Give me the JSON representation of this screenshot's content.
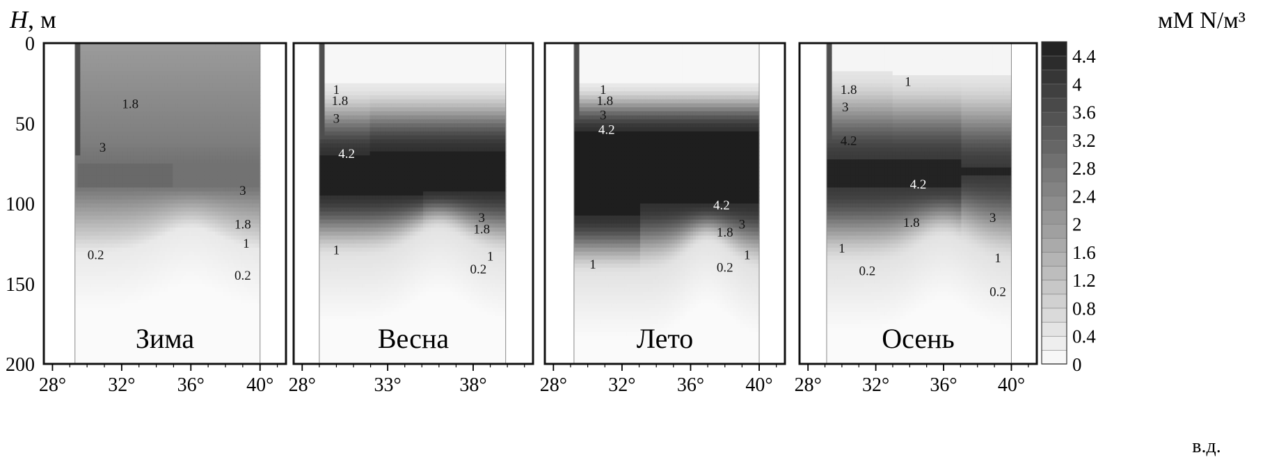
{
  "chart_data": {
    "type": "heatmap",
    "title": "",
    "y_axis": {
      "var_label": "H",
      "unit_label": ", м",
      "ylim": [
        0,
        200
      ],
      "inverted": true,
      "ticks": [
        "0",
        "50",
        "100",
        "150",
        "200"
      ]
    },
    "x_axis": {
      "unit_label": "в.д."
    },
    "colorbar": {
      "label": "мМ N/м³",
      "ticks": [
        "0",
        "0.4",
        "0.8",
        "1.2",
        "1.6",
        "2",
        "2.4",
        "2.8",
        "3.2",
        "3.6",
        "4",
        "4.4"
      ],
      "levels": [
        0,
        0.2,
        0.4,
        0.6,
        0.8,
        1.0,
        1.2,
        1.4,
        1.6,
        1.8,
        2.0,
        2.2,
        2.4,
        2.6,
        2.8,
        3.0,
        3.2,
        3.4,
        3.6,
        3.8,
        4.0,
        4.2,
        4.4
      ],
      "max": 4.6
    },
    "panels": [
      {
        "name": "Зима",
        "xticks": [
          {
            "v": 28,
            "label": "28°"
          },
          {
            "v": 32,
            "label": "32°"
          },
          {
            "v": 36,
            "label": "36°"
          },
          {
            "v": 40,
            "label": "40°"
          }
        ],
        "xlim": [
          27.5,
          41.5
        ],
        "coast_lon": 29.3,
        "east_lon": 40,
        "shape": "winter",
        "contour_labels": [
          {
            "text": "1.8",
            "lon": 32.5,
            "depth": 38,
            "color": "dark"
          },
          {
            "text": "3",
            "lon": 30.9,
            "depth": 65,
            "color": "dark"
          },
          {
            "text": "3",
            "lon": 39.0,
            "depth": 92,
            "color": "dark"
          },
          {
            "text": "1.8",
            "lon": 39.0,
            "depth": 113,
            "color": "dark"
          },
          {
            "text": "1",
            "lon": 39.2,
            "depth": 125,
            "color": "dark"
          },
          {
            "text": "0.2",
            "lon": 30.5,
            "depth": 132,
            "color": "dark"
          },
          {
            "text": "0.2",
            "lon": 39.0,
            "depth": 145,
            "color": "dark"
          }
        ]
      },
      {
        "name": "Весна",
        "xticks": [
          {
            "v": 28,
            "label": "28°"
          },
          {
            "v": 33,
            "label": "33°"
          },
          {
            "v": 38,
            "label": "38°"
          }
        ],
        "xlim": [
          27.5,
          41.5
        ],
        "coast_lon": 29.0,
        "east_lon": 39.9,
        "shape": "spring",
        "contour_labels": [
          {
            "text": "1",
            "lon": 30.0,
            "depth": 29,
            "color": "dark"
          },
          {
            "text": "1.8",
            "lon": 30.2,
            "depth": 36,
            "color": "dark"
          },
          {
            "text": "3",
            "lon": 30.0,
            "depth": 47,
            "color": "dark"
          },
          {
            "text": "4.2",
            "lon": 30.6,
            "depth": 69,
            "color": "light"
          },
          {
            "text": "3",
            "lon": 38.5,
            "depth": 109,
            "color": "dark"
          },
          {
            "text": "1.8",
            "lon": 38.5,
            "depth": 116,
            "color": "dark"
          },
          {
            "text": "1",
            "lon": 30.0,
            "depth": 129,
            "color": "dark"
          },
          {
            "text": "1",
            "lon": 39.0,
            "depth": 133,
            "color": "dark"
          },
          {
            "text": "0.2",
            "lon": 38.3,
            "depth": 141,
            "color": "dark"
          }
        ]
      },
      {
        "name": "Лето",
        "xticks": [
          {
            "v": 28,
            "label": "28°"
          },
          {
            "v": 32,
            "label": "32°"
          },
          {
            "v": 36,
            "label": "36°"
          },
          {
            "v": 40,
            "label": "40°"
          }
        ],
        "xlim": [
          27.5,
          41.5
        ],
        "coast_lon": 29.2,
        "east_lon": 40,
        "shape": "summer",
        "contour_labels": [
          {
            "text": "1",
            "lon": 30.9,
            "depth": 29,
            "color": "dark"
          },
          {
            "text": "1.8",
            "lon": 31.0,
            "depth": 36,
            "color": "dark"
          },
          {
            "text": "3",
            "lon": 30.9,
            "depth": 45,
            "color": "dark"
          },
          {
            "text": "4.2",
            "lon": 31.1,
            "depth": 54,
            "color": "light"
          },
          {
            "text": "4.2",
            "lon": 37.8,
            "depth": 101,
            "color": "light"
          },
          {
            "text": "3",
            "lon": 39.0,
            "depth": 113,
            "color": "dark"
          },
          {
            "text": "1.8",
            "lon": 38.0,
            "depth": 118,
            "color": "dark"
          },
          {
            "text": "1",
            "lon": 39.3,
            "depth": 132,
            "color": "dark"
          },
          {
            "text": "1",
            "lon": 30.3,
            "depth": 138,
            "color": "dark"
          },
          {
            "text": "0.2",
            "lon": 38.0,
            "depth": 140,
            "color": "dark"
          }
        ]
      },
      {
        "name": "Осень",
        "xticks": [
          {
            "v": 28,
            "label": "28°"
          },
          {
            "v": 32,
            "label": "32°"
          },
          {
            "v": 36,
            "label": "36°"
          },
          {
            "v": 40,
            "label": "40°"
          }
        ],
        "xlim": [
          27.5,
          41.5
        ],
        "coast_lon": 29.1,
        "east_lon": 40,
        "shape": "autumn",
        "contour_labels": [
          {
            "text": "1",
            "lon": 33.9,
            "depth": 24,
            "color": "dark"
          },
          {
            "text": "1.8",
            "lon": 30.4,
            "depth": 29,
            "color": "dark"
          },
          {
            "text": "3",
            "lon": 30.2,
            "depth": 40,
            "color": "dark"
          },
          {
            "text": "4.2",
            "lon": 30.4,
            "depth": 61,
            "color": "dark"
          },
          {
            "text": "4.2",
            "lon": 34.5,
            "depth": 88,
            "color": "light"
          },
          {
            "text": "1.8",
            "lon": 34.1,
            "depth": 112,
            "color": "dark"
          },
          {
            "text": "3",
            "lon": 38.9,
            "depth": 109,
            "color": "dark"
          },
          {
            "text": "1",
            "lon": 30.0,
            "depth": 128,
            "color": "dark"
          },
          {
            "text": "1",
            "lon": 39.2,
            "depth": 134,
            "color": "dark"
          },
          {
            "text": "0.2",
            "lon": 31.5,
            "depth": 142,
            "color": "dark"
          },
          {
            "text": "0.2",
            "lon": 39.2,
            "depth": 155,
            "color": "dark"
          }
        ]
      }
    ]
  }
}
